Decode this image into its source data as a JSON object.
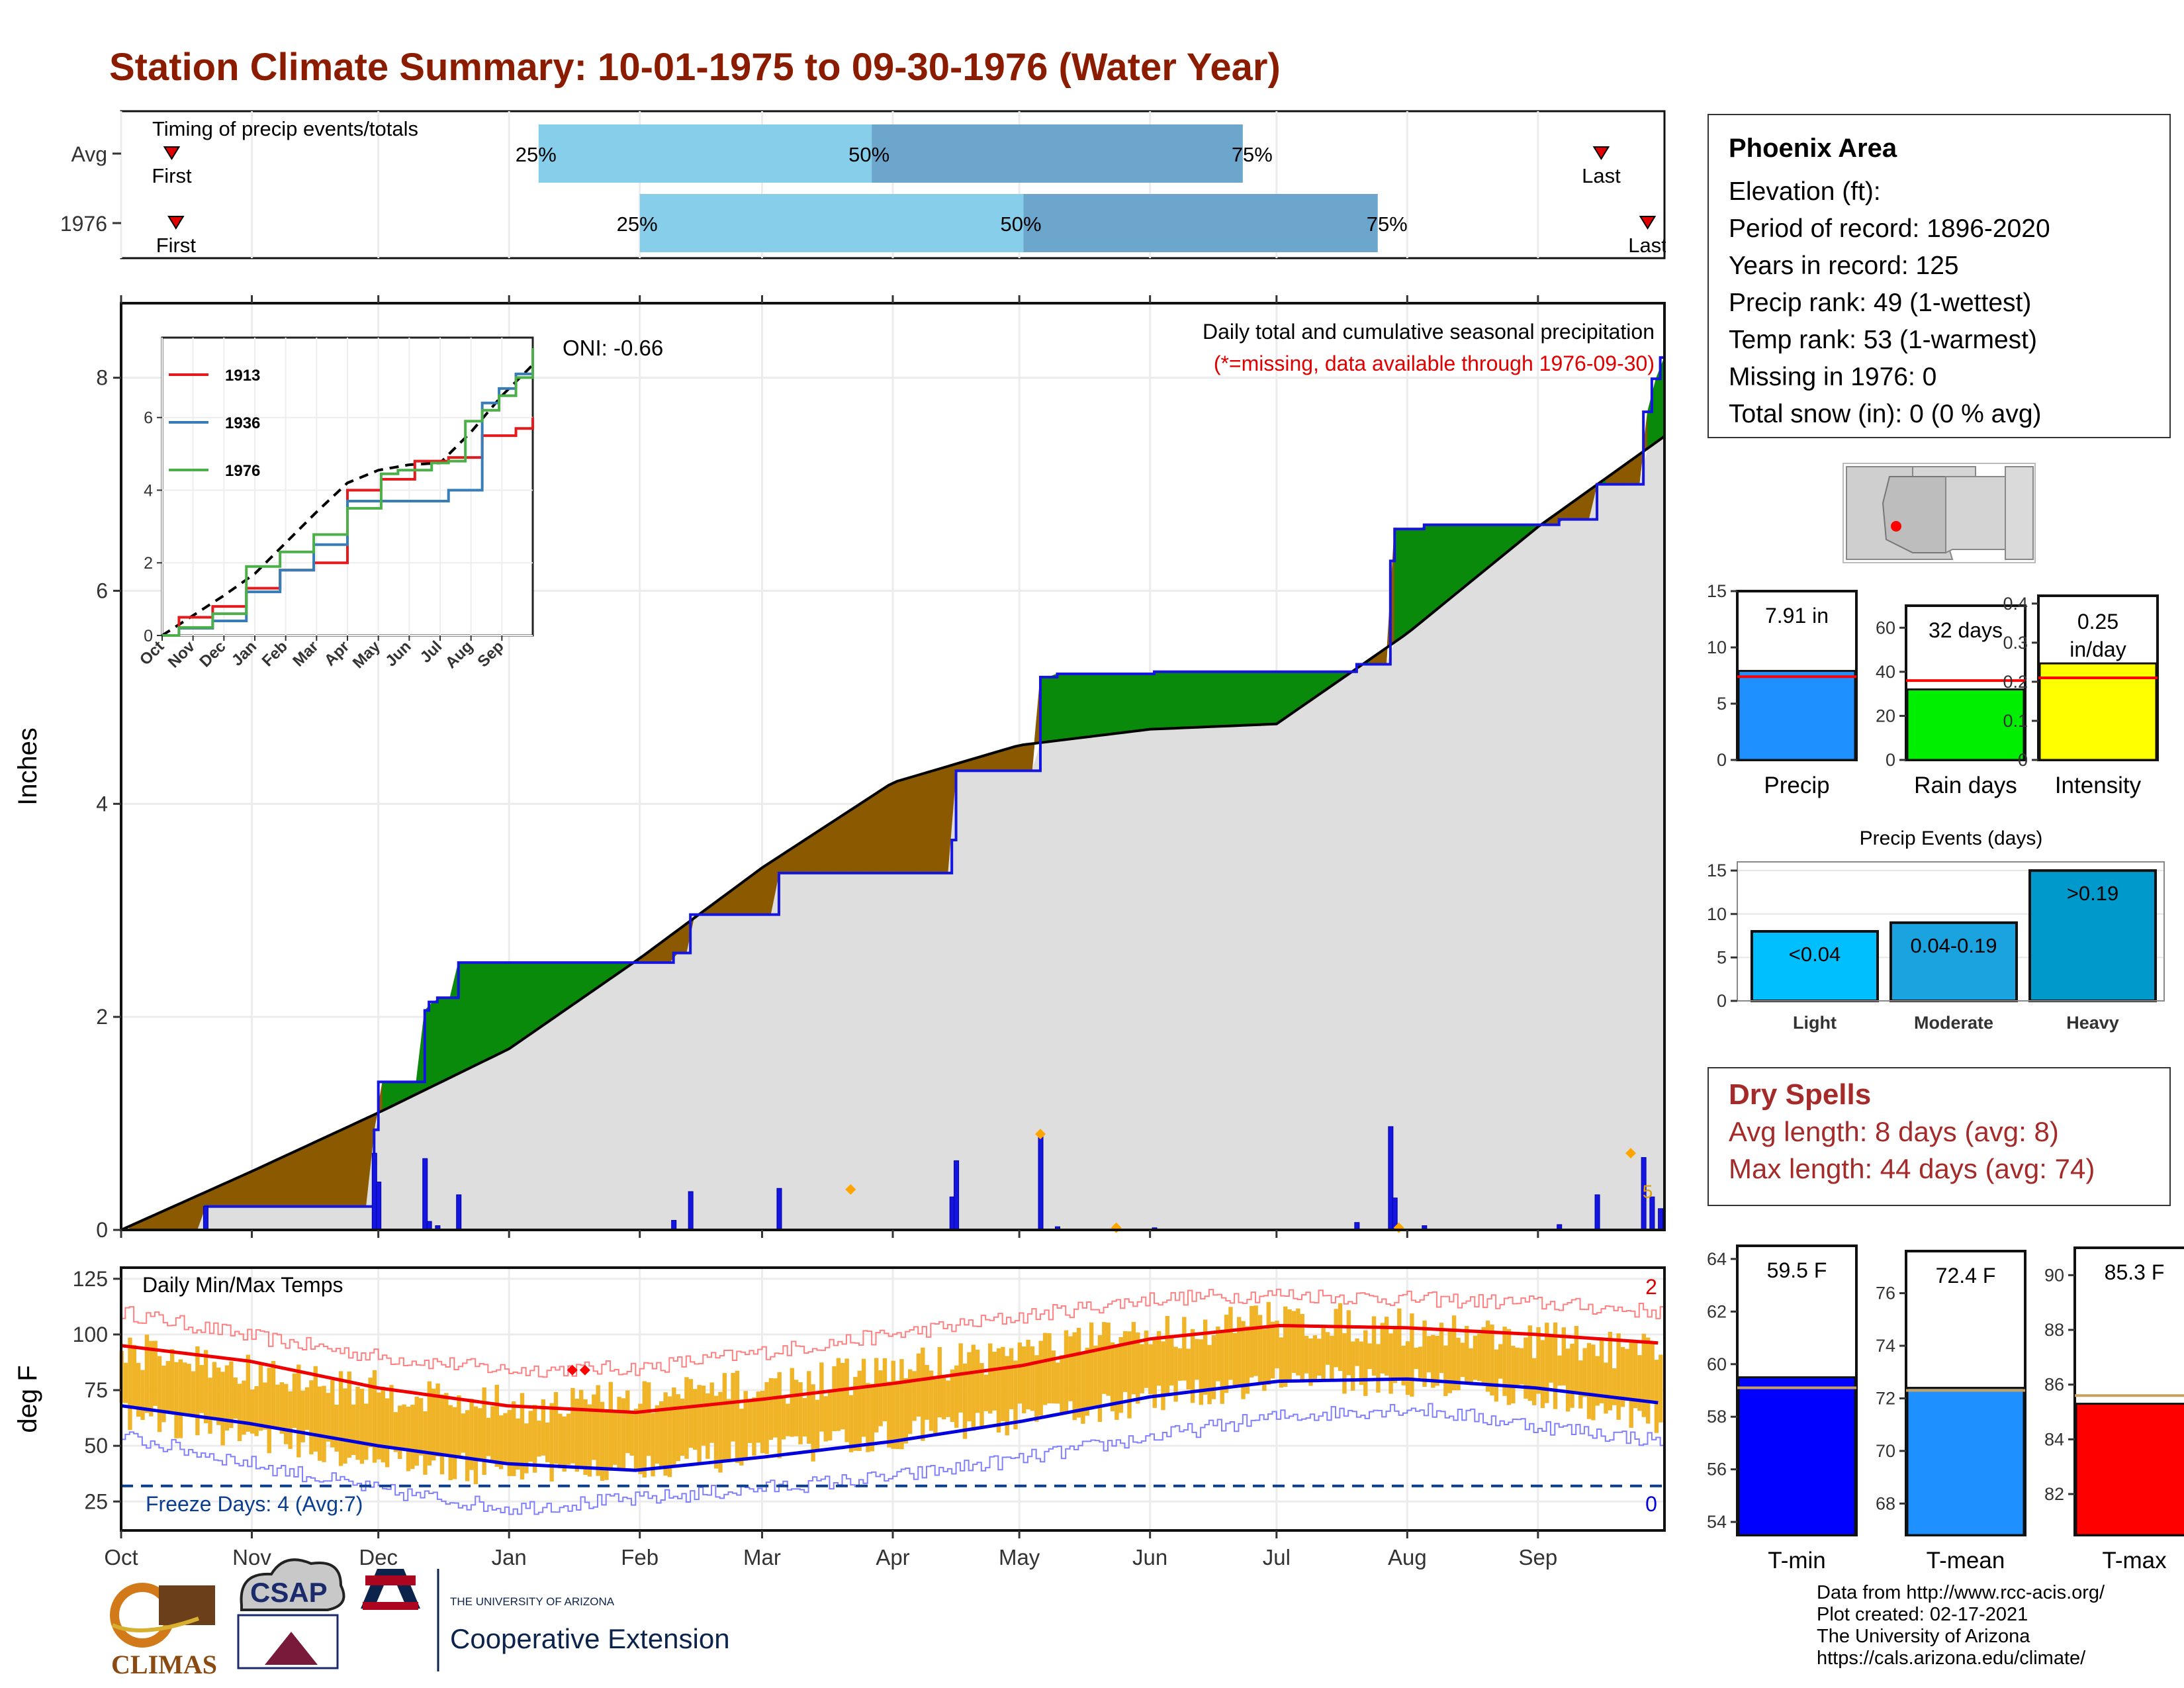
{
  "title": "Station Climate Summary: 10-01-1975 to 09-30-1976 (Water Year)",
  "months": [
    "Oct",
    "Nov",
    "Dec",
    "Jan",
    "Feb",
    "Mar",
    "Apr",
    "May",
    "Jun",
    "Jul",
    "Aug",
    "Sep"
  ],
  "timing": {
    "label": "Timing of precip events/totals",
    "rows": [
      {
        "name": "Avg",
        "first_label": "First",
        "last_label": "Last",
        "first_day": 12,
        "last_day": 351,
        "p25": 99,
        "p50": 178,
        "p75": 266,
        "p25_label": "25%",
        "p50_label": "50%",
        "p75_label": "75%"
      },
      {
        "name": "1976",
        "first_label": "First",
        "last_label": "Last",
        "first_day": 13,
        "last_day": 362,
        "p25": 123,
        "p50": 214,
        "p75": 298,
        "p25_label": "25%",
        "p50_label": "50%",
        "p75_label": "75%"
      }
    ]
  },
  "precip_panel": {
    "ylabel": "Inches",
    "oni": "ONI: -0.66",
    "subtitle": "Daily total and cumulative seasonal precipitation",
    "note": "(*=missing, data available through 1976-09-30)",
    "yticks": [
      0,
      2,
      4,
      6,
      8
    ],
    "ylim": [
      0,
      8.7
    ],
    "missing_count_label": "5"
  },
  "inset": {
    "yticks": [
      0,
      2,
      4,
      6
    ],
    "ylim": [
      0,
      8.2
    ],
    "months": [
      "Oct",
      "Nov",
      "Dec",
      "Jan",
      "Feb",
      "Mar",
      "Apr",
      "May",
      "Jun",
      "Jul",
      "Aug",
      "Sep"
    ],
    "series": [
      {
        "name": "1913",
        "color": "#e41a1c"
      },
      {
        "name": "1936",
        "color": "#377eb8"
      },
      {
        "name": "1976",
        "color": "#4daf4a"
      }
    ]
  },
  "temp_panel": {
    "ylabel": "deg F",
    "label": "Daily Min/Max Temps",
    "freeze_label": "Freeze Days: 4 (Avg:7)",
    "freeze_line": 32,
    "yticks": [
      25,
      50,
      75,
      100,
      125
    ],
    "ylim": [
      12,
      130
    ],
    "record_high_count": "2",
    "record_low_count": "0"
  },
  "info": {
    "station": "Phoenix Area",
    "lines": [
      "Elevation (ft):",
      "Period of record: 1896-2020",
      "Years in record: 125",
      "Precip rank: 49 (1-wettest)",
      "Temp rank: 53 (1-warmest)",
      "Missing in 1976: 0",
      "Total snow (in): 0 (0 % avg)"
    ]
  },
  "summary_bars": [
    {
      "name": "Precip",
      "label": "7.91 in",
      "value": 7.91,
      "avg": 7.4,
      "yticks": [
        0,
        5,
        10,
        15
      ],
      "ylim": [
        0,
        15
      ],
      "color": "#1e90ff"
    },
    {
      "name": "Rain days",
      "label": "32 days",
      "value": 32,
      "avg": 36,
      "yticks": [
        0,
        20,
        40,
        60
      ],
      "ylim": [
        0,
        70
      ],
      "color": "#00ee00"
    },
    {
      "name": "Intensity",
      "label": "0.25 in/day",
      "value": 0.247,
      "avg": 0.21,
      "yticks": [
        0.0,
        0.1,
        0.2,
        0.3,
        0.4
      ],
      "ylim": [
        0,
        0.42
      ],
      "color": "#ffff00"
    }
  ],
  "events": {
    "title": "Precip Events (days)",
    "yticks": [
      0,
      5,
      10,
      15
    ],
    "ylim": [
      0,
      16
    ],
    "bars": [
      {
        "cat": "Light",
        "label": "<0.04",
        "value": 8,
        "color": "#00bfff"
      },
      {
        "cat": "Moderate",
        "label": "0.04-0.19",
        "value": 9,
        "color": "#1aa3df"
      },
      {
        "cat": "Heavy",
        "label": ">0.19",
        "value": 15,
        "color": "#0099cc"
      }
    ]
  },
  "dry_spells": {
    "title": "Dry Spells",
    "avg_length": "Avg length: 8 days (avg: 8)",
    "max_length": "Max length: 44 days (avg: 74)"
  },
  "temp_bars": [
    {
      "name": "T-min",
      "label": "59.5 F",
      "value": 59.5,
      "avg": 59.1,
      "yticks": [
        54,
        56,
        58,
        60,
        62,
        64
      ],
      "ylim": [
        53.5,
        64.5
      ],
      "color": "#0000ff"
    },
    {
      "name": "T-mean",
      "label": "72.4 F",
      "value": 72.4,
      "avg": 72.3,
      "yticks": [
        68,
        70,
        72,
        74,
        76
      ],
      "ylim": [
        66.8,
        77.6
      ],
      "color": "#1e90ff"
    },
    {
      "name": "T-max",
      "label": "85.3 F",
      "value": 85.3,
      "avg": 85.6,
      "yticks": [
        82,
        84,
        86,
        88,
        90
      ],
      "ylim": [
        80.5,
        91
      ],
      "color": "#ff0000"
    }
  ],
  "credits": [
    "Data from http://www.rcc-acis.org/",
    "Plot created: 02-17-2021",
    "The University of Arizona",
    "https://cals.arizona.edu/climate/"
  ],
  "logos": {
    "climas": "CLIMAS",
    "csap": "CSAP",
    "ua_small": "THE UNIVERSITY OF ARIZONA",
    "ua_big": "Cooperative Extension"
  },
  "chart_data": [
    {
      "type": "area",
      "title": "Daily total and cumulative seasonal precipitation",
      "ylabel": "Inches",
      "ylim": [
        0,
        8.7
      ],
      "cumulative_avg": {
        "x": [
          "Oct",
          "Nov",
          "Dec",
          "Jan",
          "Feb",
          "Mar",
          "Apr",
          "May",
          "Jun",
          "Jul",
          "Aug",
          "Sep",
          "Sep end"
        ],
        "values": [
          0,
          0.55,
          1.1,
          1.7,
          2.55,
          3.4,
          4.2,
          4.55,
          4.7,
          4.75,
          5.6,
          6.6,
          7.45
        ]
      },
      "cumulative_1976": {
        "x": [
          "Oct",
          "Nov",
          "Dec",
          "Jan",
          "Feb",
          "Mar",
          "Apr",
          "May",
          "Jun",
          "Jul",
          "Aug",
          "Sep",
          "Sep end"
        ],
        "values": [
          0,
          0.22,
          0.22,
          1.9,
          1.9,
          2.78,
          2.78,
          4.45,
          4.55,
          4.75,
          5.9,
          6.2,
          7.91
        ]
      },
      "daily_events": [
        {
          "date": "1975-10-21",
          "value": 0.22
        },
        {
          "date": "1975-11-30",
          "value": 0.72
        },
        {
          "date": "1975-12-01",
          "value": 0.45
        },
        {
          "date": "1975-12-12",
          "value": 0.67
        },
        {
          "date": "1975-12-13",
          "value": 0.08
        },
        {
          "date": "1975-12-15",
          "value": 0.04
        },
        {
          "date": "1975-12-20",
          "value": 0.33
        },
        {
          "date": "1976-02-09",
          "value": 0.09
        },
        {
          "date": "1976-02-13",
          "value": 0.36
        },
        {
          "date": "1976-03-05",
          "value": 0.39
        },
        {
          "date": "1976-04-15",
          "value": 0.31
        },
        {
          "date": "1976-04-16",
          "value": 0.65
        },
        {
          "date": "1976-05-06",
          "value": 0.88
        },
        {
          "date": "1976-05-10",
          "value": 0.03
        },
        {
          "date": "1976-06-02",
          "value": 0.02
        },
        {
          "date": "1976-07-20",
          "value": 0.07
        },
        {
          "date": "1976-07-28",
          "value": 0.97
        },
        {
          "date": "1976-07-29",
          "value": 0.3
        },
        {
          "date": "1976-08-05",
          "value": 0.04
        },
        {
          "date": "1976-09-06",
          "value": 0.05
        },
        {
          "date": "1976-09-15",
          "value": 0.33
        },
        {
          "date": "1976-09-26",
          "value": 0.68
        },
        {
          "date": "1976-09-28",
          "value": 0.31
        },
        {
          "date": "1976-09-30",
          "value": 0.2
        }
      ]
    },
    {
      "type": "line",
      "title": "Daily Min/Max Temps",
      "ylabel": "deg F",
      "ylim": [
        12,
        130
      ],
      "x": [
        "Oct",
        "Nov",
        "Dec",
        "Jan",
        "Feb",
        "Mar",
        "Apr",
        "May",
        "Jun",
        "Jul",
        "Aug",
        "Sep",
        "Sep end"
      ],
      "series": [
        {
          "values_kind": "normal_max",
          "values": [
            95,
            88,
            76,
            68,
            65,
            71,
            78,
            86,
            98,
            104,
            103,
            100,
            96
          ]
        },
        {
          "values_kind": "normal_min",
          "values": [
            68,
            60,
            50,
            42,
            39,
            45,
            52,
            61,
            72,
            79,
            80,
            76,
            69
          ]
        },
        {
          "values_kind": "record_high",
          "values": [
            110,
            99,
            90,
            84,
            85,
            92,
            100,
            108,
            116,
            118,
            116,
            114,
            110
          ]
        },
        {
          "values_kind": "record_low",
          "values": [
            54,
            42,
            30,
            22,
            26,
            31,
            36,
            44,
            54,
            63,
            67,
            59,
            52
          ]
        },
        {
          "values_kind": "daily_max_1976",
          "values": [
            95,
            82,
            75,
            68,
            71,
            76,
            84,
            93,
            100,
            107,
            103,
            98,
            90
          ]
        },
        {
          "values_kind": "daily_min_1976",
          "values": [
            64,
            55,
            44,
            38,
            42,
            46,
            55,
            62,
            70,
            80,
            79,
            73,
            62
          ]
        }
      ]
    }
  ]
}
